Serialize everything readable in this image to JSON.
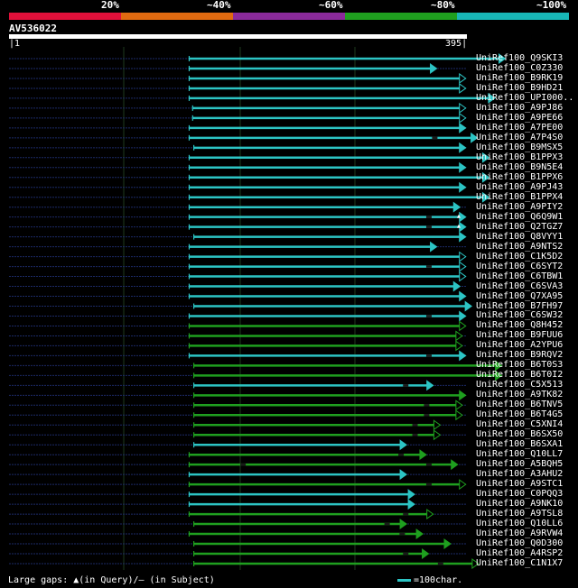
{
  "colors": {
    "background": "#000000",
    "lt40": "#2cc4c4",
    "lt80": "#1f9f1f",
    "scale": [
      "#e0103a",
      "#e06a10",
      "#8a2a9a",
      "#1f9f1f",
      "#18b6b6"
    ],
    "guide": "#1e3a1e",
    "dotted": "#1c2a66"
  },
  "header": {
    "percent_labels": [
      "20%",
      "~40%",
      "~60%",
      "~80%",
      "~100%"
    ]
  },
  "query": {
    "name": "AV536022",
    "start": "1",
    "end": "395",
    "length": 395
  },
  "legend": {
    "gaps_text": "Large gaps: ▲(in Query)/— (in Subject)",
    "scale_text": "=100char."
  },
  "hits": [
    {
      "name": "UniRef100_Q9SKI3",
      "start": 156,
      "end": 428,
      "band": "lt40",
      "arrow": "filled",
      "gaps": []
    },
    {
      "name": "UniRef100_C0Z330",
      "start": 156,
      "end": 369,
      "band": "lt40",
      "arrow": "filled",
      "gaps": []
    },
    {
      "name": "UniRef100_B9RK19",
      "start": 156,
      "end": 394,
      "band": "lt40",
      "arrow": "open",
      "gaps": []
    },
    {
      "name": "UniRef100_B9HD21",
      "start": 156,
      "end": 394,
      "band": "lt40",
      "arrow": "open",
      "gaps": []
    },
    {
      "name": "UniRef100_UPI000..",
      "start": 156,
      "end": 419,
      "band": "lt40",
      "arrow": "filled",
      "gaps": []
    },
    {
      "name": "UniRef100_A9PJ86",
      "start": 159,
      "end": 394,
      "band": "lt40",
      "arrow": "open",
      "gaps": []
    },
    {
      "name": "UniRef100_A9PE66",
      "start": 159,
      "end": 394,
      "band": "lt40",
      "arrow": "open",
      "gaps": []
    },
    {
      "name": "UniRef100_A7PE00",
      "start": 156,
      "end": 394,
      "band": "lt40",
      "arrow": "filled",
      "gaps": []
    },
    {
      "name": "UniRef100_A7P4S0",
      "start": 156,
      "end": 404,
      "band": "lt40",
      "arrow": "filled",
      "gaps": [
        365
      ]
    },
    {
      "name": "UniRef100_B9MSX5",
      "start": 160,
      "end": 394,
      "band": "lt40",
      "arrow": "filled",
      "gaps": []
    },
    {
      "name": "UniRef100_B1PPX3",
      "start": 156,
      "end": 414,
      "band": "lt40",
      "arrow": "filled",
      "gaps": []
    },
    {
      "name": "UniRef100_B9N5E4",
      "start": 156,
      "end": 394,
      "band": "lt40",
      "arrow": "filled",
      "gaps": []
    },
    {
      "name": "UniRef100_B1PPX6",
      "start": 156,
      "end": 414,
      "band": "lt40",
      "arrow": "filled",
      "gaps": []
    },
    {
      "name": "UniRef100_A9PJ43",
      "start": 156,
      "end": 394,
      "band": "lt40",
      "arrow": "filled",
      "gaps": []
    },
    {
      "name": "UniRef100_B1PPX4",
      "start": 156,
      "end": 414,
      "band": "lt40",
      "arrow": "filled",
      "gaps": []
    },
    {
      "name": "UniRef100_A9PIY2",
      "start": 156,
      "end": 389,
      "band": "lt40",
      "arrow": "filled",
      "gaps": []
    },
    {
      "name": "UniRef100_Q6Q9W1",
      "start": 156,
      "end": 394,
      "band": "lt40",
      "arrow": "filled",
      "gaps": [
        360
      ],
      "qgap": 388
    },
    {
      "name": "UniRef100_Q2TGZ7",
      "start": 156,
      "end": 394,
      "band": "lt40",
      "arrow": "filled",
      "gaps": [
        360
      ],
      "qgap": 388
    },
    {
      "name": "UniRef100_Q8VYY1",
      "start": 160,
      "end": 394,
      "band": "lt40",
      "arrow": "filled",
      "gaps": []
    },
    {
      "name": "UniRef100_A9NTS2",
      "start": 156,
      "end": 369,
      "band": "lt40",
      "arrow": "filled",
      "gaps": []
    },
    {
      "name": "UniRef100_C1K5D2",
      "start": 156,
      "end": 394,
      "band": "lt40",
      "arrow": "open",
      "gaps": []
    },
    {
      "name": "UniRef100_C6SYT2",
      "start": 156,
      "end": 394,
      "band": "lt40",
      "arrow": "open",
      "gaps": [
        360
      ]
    },
    {
      "name": "UniRef100_C6TBW1",
      "start": 156,
      "end": 394,
      "band": "lt40",
      "arrow": "open",
      "gaps": []
    },
    {
      "name": "UniRef100_C6SVA3",
      "start": 156,
      "end": 389,
      "band": "lt40",
      "arrow": "filled",
      "gaps": []
    },
    {
      "name": "UniRef100_Q7XA95",
      "start": 156,
      "end": 394,
      "band": "lt40",
      "arrow": "filled",
      "gaps": []
    },
    {
      "name": "UniRef100_B7FH97",
      "start": 160,
      "end": 399,
      "band": "lt40",
      "arrow": "filled",
      "gaps": []
    },
    {
      "name": "UniRef100_C6SW32",
      "start": 156,
      "end": 394,
      "band": "lt40",
      "arrow": "filled",
      "gaps": [
        360
      ]
    },
    {
      "name": "UniRef100_Q8H452",
      "start": 156,
      "end": 394,
      "band": "lt80",
      "arrow": "open",
      "gaps": []
    },
    {
      "name": "UniRef100_B9FUU6",
      "start": 156,
      "end": 391,
      "band": "lt80",
      "arrow": "open",
      "gaps": []
    },
    {
      "name": "UniRef100_A2YPU6",
      "start": 156,
      "end": 391,
      "band": "lt80",
      "arrow": "open",
      "gaps": []
    },
    {
      "name": "UniRef100_B9RQV2",
      "start": 156,
      "end": 394,
      "band": "lt40",
      "arrow": "filled",
      "gaps": [
        360
      ]
    },
    {
      "name": "UniRef100_B6T0S3",
      "start": 160,
      "end": 425,
      "band": "lt80",
      "arrow": "filled",
      "gaps": []
    },
    {
      "name": "UniRef100_B6T0I2",
      "start": 160,
      "end": 425,
      "band": "lt80",
      "arrow": "filled",
      "gaps": []
    },
    {
      "name": "UniRef100_C5X513",
      "start": 160,
      "end": 366,
      "band": "lt40",
      "arrow": "filled",
      "gaps": [
        340
      ]
    },
    {
      "name": "UniRef100_A9TK82",
      "start": 160,
      "end": 394,
      "band": "lt80",
      "arrow": "filled",
      "gaps": []
    },
    {
      "name": "UniRef100_B6TNV5",
      "start": 160,
      "end": 391,
      "band": "lt80",
      "arrow": "open",
      "gaps": [
        358
      ]
    },
    {
      "name": "UniRef100_B6T4G5",
      "start": 160,
      "end": 391,
      "band": "lt80",
      "arrow": "open",
      "gaps": [
        358
      ]
    },
    {
      "name": "UniRef100_C5XNI4",
      "start": 160,
      "end": 372,
      "band": "lt80",
      "arrow": "open",
      "gaps": [
        348
      ]
    },
    {
      "name": "UniRef100_B6SX50",
      "start": 160,
      "end": 372,
      "band": "lt80",
      "arrow": "open",
      "gaps": [
        348
      ]
    },
    {
      "name": "UniRef100_B6SXA1",
      "start": 160,
      "end": 343,
      "band": "lt40",
      "arrow": "filled",
      "gaps": []
    },
    {
      "name": "UniRef100_Q10LL7",
      "start": 156,
      "end": 360,
      "band": "lt80",
      "arrow": "filled",
      "gaps": [
        336
      ]
    },
    {
      "name": "UniRef100_A5BQH5",
      "start": 156,
      "end": 387,
      "band": "lt80",
      "arrow": "filled",
      "gaps": [
        200,
        360
      ]
    },
    {
      "name": "UniRef100_A3AHU2",
      "start": 156,
      "end": 343,
      "band": "lt40",
      "arrow": "filled",
      "gaps": []
    },
    {
      "name": "UniRef100_A9STC1",
      "start": 156,
      "end": 394,
      "band": "lt80",
      "arrow": "open",
      "gaps": [
        360
      ]
    },
    {
      "name": "UniRef100_C0PQQ3",
      "start": 156,
      "end": 350,
      "band": "lt40",
      "arrow": "filled",
      "gaps": []
    },
    {
      "name": "UniRef100_A9NK10",
      "start": 156,
      "end": 350,
      "band": "lt40",
      "arrow": "filled",
      "gaps": []
    },
    {
      "name": "UniRef100_A9TSL8",
      "start": 156,
      "end": 366,
      "band": "lt80",
      "arrow": "open",
      "gaps": [
        340
      ]
    },
    {
      "name": "UniRef100_Q10LL6",
      "start": 160,
      "end": 343,
      "band": "lt80",
      "arrow": "filled",
      "gaps": [
        324
      ]
    },
    {
      "name": "UniRef100_A9RVW4",
      "start": 156,
      "end": 357,
      "band": "lt80",
      "arrow": "filled",
      "gaps": [
        337
      ]
    },
    {
      "name": "UniRef100_Q0D300",
      "start": 160,
      "end": 381,
      "band": "lt80",
      "arrow": "filled",
      "gaps": []
    },
    {
      "name": "UniRef100_A4RSP2",
      "start": 160,
      "end": 362,
      "band": "lt80",
      "arrow": "filled",
      "gaps": [
        340
      ]
    },
    {
      "name": "UniRef100_C1N1X7",
      "start": 160,
      "end": 405,
      "band": "lt80",
      "arrow": "open",
      "gaps": [
        370
      ]
    }
  ]
}
